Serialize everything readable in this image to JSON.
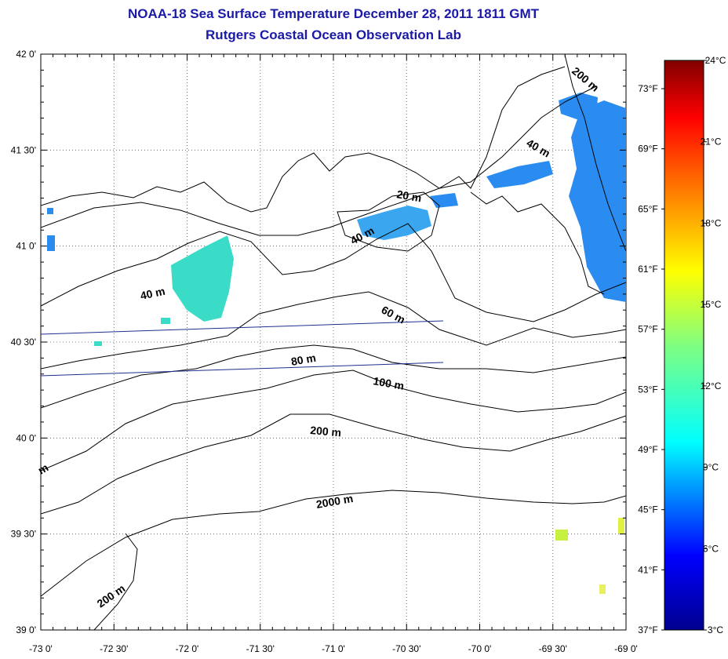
{
  "title": "NOAA-18 Sea Surface Temperature December 28, 2011 1811 GMT",
  "subtitle": "Rutgers Coastal Ocean Observation Lab",
  "latitude_labels": [
    "42 0'",
    "41 30'",
    "41 0'",
    "40 30'",
    "40 0'",
    "39 30'",
    "39 0'"
  ],
  "longitude_labels": [
    "-73 0'",
    "-72 30'",
    "-72 0'",
    "-71 30'",
    "-71 0'",
    "-70 30'",
    "-70 0'",
    "-69 30'",
    "-69 0'"
  ],
  "isobath_labels": [
    "200 m",
    "40 m",
    "20 m",
    "40 m",
    "40 m",
    "60 m",
    "80 m",
    "100 m",
    "200 m",
    "2000 m",
    "200 m",
    "m"
  ],
  "colorbar": {
    "celsius": [
      "24°C",
      "21°C",
      "18°C",
      "15°C",
      "12°C",
      "9°C",
      "6°C",
      "3°C"
    ],
    "fahrenheit": [
      "73°F",
      "69°F",
      "65°F",
      "61°F",
      "57°F",
      "53°F",
      "49°F",
      "45°F",
      "41°F",
      "37°F"
    ],
    "range_c": [
      3,
      24
    ]
  },
  "colors": {
    "title": "#1a1aa6",
    "transect": "#1f2f8f"
  }
}
